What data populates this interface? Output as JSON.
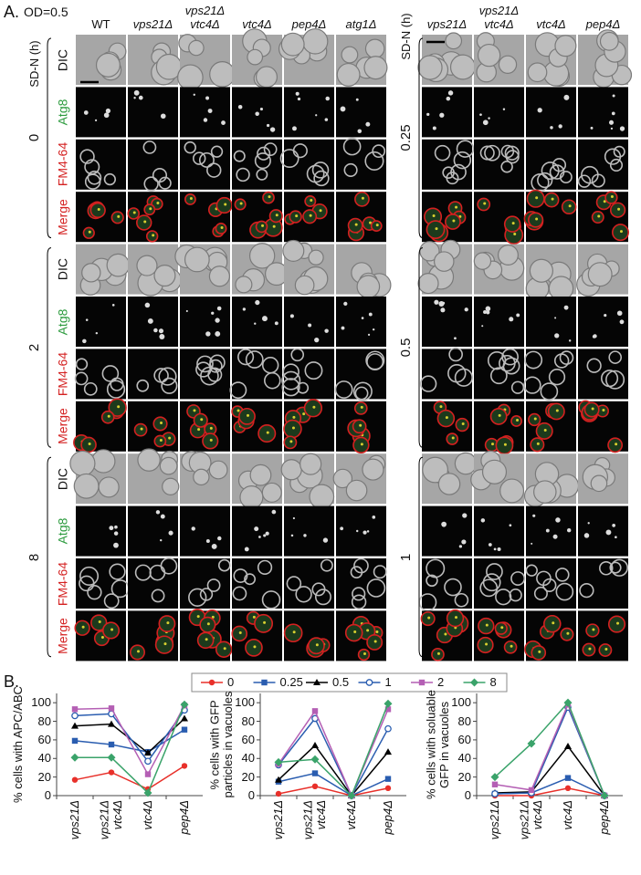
{
  "panel_a": {
    "label": "A.",
    "condition": "OD=0.5",
    "axis_label": "SD-N (h)",
    "channels": [
      "DIC",
      "Atg8",
      "FM4-64",
      "Merge"
    ],
    "left": {
      "columns": [
        "WT",
        "vps21Δ",
        "vps21Δ\nvtc4Δ",
        "vtc4Δ",
        "pep4Δ",
        "atg1Δ"
      ],
      "times": [
        "0",
        "2",
        "8"
      ]
    },
    "right": {
      "columns": [
        "vps21Δ",
        "vps21Δ\nvtc4Δ",
        "vtc4Δ",
        "pep4Δ"
      ],
      "times": [
        "0.25",
        "0.5",
        "1"
      ]
    }
  },
  "panel_b": {
    "label": "B."
  },
  "chart_data": [
    {
      "type": "line",
      "ylabel": "% cells with APC/ABC",
      "categories": [
        "vps21Δ",
        "vps21Δ\nvtc4Δ",
        "vtc4Δ",
        "pep4Δ"
      ],
      "ylim": [
        0,
        110
      ],
      "yticks": [
        0,
        20,
        40,
        60,
        80,
        100
      ],
      "legend": true,
      "series": [
        {
          "name": "0",
          "color": "#e8302a",
          "marker": "circle",
          "values": [
            17,
            25,
            7,
            32
          ]
        },
        {
          "name": "0.25",
          "color": "#2a5db0",
          "marker": "square",
          "values": [
            59,
            55,
            47,
            71
          ]
        },
        {
          "name": "0.5",
          "color": "#000000",
          "marker": "triangle",
          "values": [
            75,
            77,
            46,
            83
          ]
        },
        {
          "name": "1",
          "color": "#2a5db0",
          "marker": "open-circle",
          "values": [
            86,
            88,
            37,
            92
          ]
        },
        {
          "name": "2",
          "color": "#b45fb4",
          "marker": "square",
          "values": [
            93,
            94,
            23,
            97
          ]
        },
        {
          "name": "8",
          "color": "#3aa36a",
          "marker": "diamond",
          "values": [
            41,
            41,
            3,
            98
          ]
        }
      ]
    },
    {
      "type": "line",
      "ylabel": "% cells with GFP\nparticles in vacuoles",
      "categories": [
        "vps21Δ",
        "vps21Δ\nvtc4Δ",
        "vtc4Δ",
        "pep4Δ"
      ],
      "ylim": [
        0,
        110
      ],
      "yticks": [
        0,
        20,
        40,
        60,
        80,
        100
      ],
      "series": [
        {
          "color": "#e8302a",
          "marker": "circle",
          "values": [
            2,
            10,
            0,
            8
          ]
        },
        {
          "color": "#2a5db0",
          "marker": "square",
          "values": [
            15,
            24,
            0,
            18
          ]
        },
        {
          "color": "#000000",
          "marker": "triangle",
          "values": [
            17,
            54,
            0,
            47
          ]
        },
        {
          "color": "#2a5db0",
          "marker": "open-circle",
          "values": [
            33,
            83,
            0,
            72
          ]
        },
        {
          "color": "#b45fb4",
          "marker": "square",
          "values": [
            34,
            91,
            0,
            93
          ]
        },
        {
          "color": "#3aa36a",
          "marker": "diamond",
          "values": [
            36,
            39,
            0,
            99
          ]
        }
      ]
    },
    {
      "type": "line",
      "ylabel": "% cells with soluable\nGFP in vacuoles",
      "categories": [
        "vps21Δ",
        "vps21Δ\nvtc4Δ",
        "vtc4Δ",
        "pep4Δ"
      ],
      "ylim": [
        0,
        110
      ],
      "yticks": [
        0,
        20,
        40,
        60,
        80,
        100
      ],
      "series": [
        {
          "color": "#e8302a",
          "marker": "circle",
          "values": [
            0,
            0,
            8,
            0
          ]
        },
        {
          "color": "#2a5db0",
          "marker": "square",
          "values": [
            2,
            3,
            19,
            0
          ]
        },
        {
          "color": "#000000",
          "marker": "triangle",
          "values": [
            3,
            4,
            53,
            0
          ]
        },
        {
          "color": "#2a5db0",
          "marker": "open-circle",
          "values": [
            2,
            3,
            95,
            0
          ]
        },
        {
          "color": "#b45fb4",
          "marker": "square",
          "values": [
            12,
            6,
            98,
            0
          ]
        },
        {
          "color": "#3aa36a",
          "marker": "diamond",
          "values": [
            20,
            56,
            100,
            0
          ]
        }
      ]
    }
  ]
}
